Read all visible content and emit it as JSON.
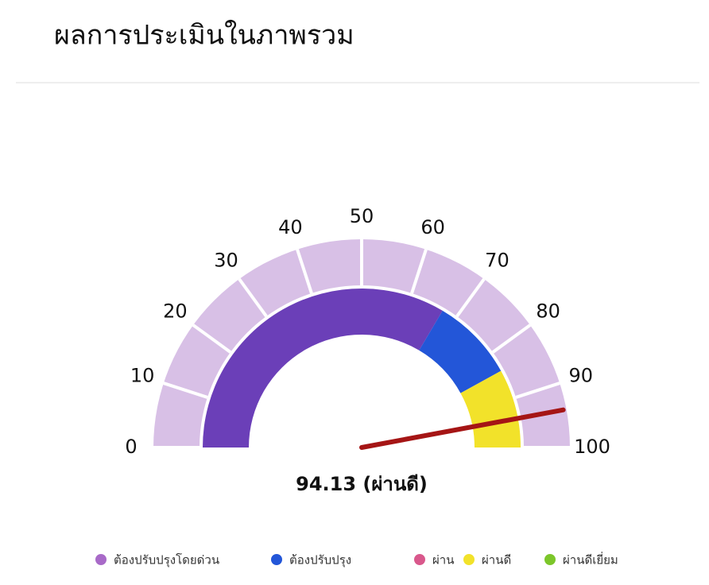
{
  "chart_data": {
    "type": "gauge",
    "title": "ผลการประเมินในภาพรวม",
    "value": 94.13,
    "value_labels": "94.13 (ผ่านดี)",
    "needle_color": "#a51515",
    "ylim": [
      0,
      100
    ],
    "yticks": [
      0,
      10,
      20,
      30,
      40,
      50,
      60,
      70,
      80,
      90,
      100
    ],
    "ring_color": "#d8c0e6",
    "bands": [
      {
        "from": 0,
        "to": 67,
        "color": "#6b3fb8"
      },
      {
        "from": 67,
        "to": 84,
        "color": "#2356d8"
      },
      {
        "from": 84,
        "to": 100,
        "color": "#f2e22a"
      }
    ],
    "legend": [
      {
        "name": "ต้องปรับปรุงโดยด่วน",
        "color": "#a86ac8"
      },
      {
        "name": "ต้องปรับปรุง",
        "color": "#2356d8"
      },
      {
        "name": "ผ่าน",
        "color": "#d9588c"
      },
      {
        "name": "ผ่านดี",
        "color": "#f2e22a"
      },
      {
        "name": "ผ่านดีเยี่ยม",
        "color": "#7cc62a"
      }
    ]
  }
}
